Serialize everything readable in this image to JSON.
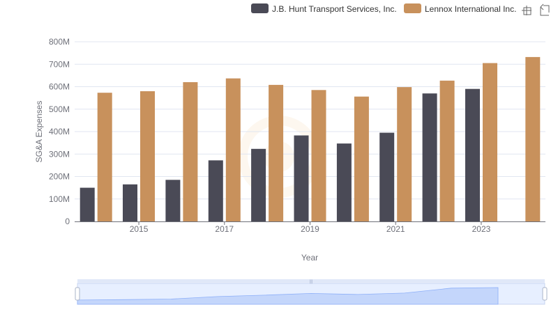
{
  "colors": {
    "series_0": "#4a4a56",
    "series_1": "#c8915c",
    "grid": "#e0e6f1",
    "axis_text": "#6e7079",
    "slider_fill": "#d4e0fb",
    "slider_line": "#8fb0f7",
    "slider_border": "#d2dbee"
  },
  "icons": [
    "zoom-icon",
    "zoom-reset-icon"
  ],
  "chart_data": {
    "type": "bar",
    "xlabel": "Year",
    "ylabel": "SG&A Expenses",
    "ylim": [
      0,
      800000000
    ],
    "y_ticks": [
      {
        "value": 0,
        "label": "0"
      },
      {
        "value": 100000000,
        "label": "100M"
      },
      {
        "value": 200000000,
        "label": "200M"
      },
      {
        "value": 300000000,
        "label": "300M"
      },
      {
        "value": 400000000,
        "label": "400M"
      },
      {
        "value": 500000000,
        "label": "500M"
      },
      {
        "value": 600000000,
        "label": "600M"
      },
      {
        "value": 700000000,
        "label": "700M"
      },
      {
        "value": 800000000,
        "label": "800M"
      }
    ],
    "categories": [
      "2014",
      "2015",
      "2016",
      "2017",
      "2018",
      "2019",
      "2020",
      "2021",
      "2022",
      "2023",
      "2024"
    ],
    "x_tick_labels": [
      "",
      "2015",
      "",
      "2017",
      "",
      "2019",
      "",
      "2021",
      "",
      "2023",
      ""
    ],
    "legend_position": "top-right",
    "grid": true,
    "series": [
      {
        "name": "J.B. Hunt Transport Services, Inc.",
        "values": [
          150000000,
          165000000,
          185000000,
          272000000,
          323000000,
          383000000,
          347000000,
          395000000,
          570000000,
          590000000,
          null
        ]
      },
      {
        "name": "Lennox International Inc.",
        "values": [
          573000000,
          580000000,
          620000000,
          637000000,
          608000000,
          585000000,
          556000000,
          598000000,
          627000000,
          705000000,
          732000000
        ]
      }
    ]
  }
}
